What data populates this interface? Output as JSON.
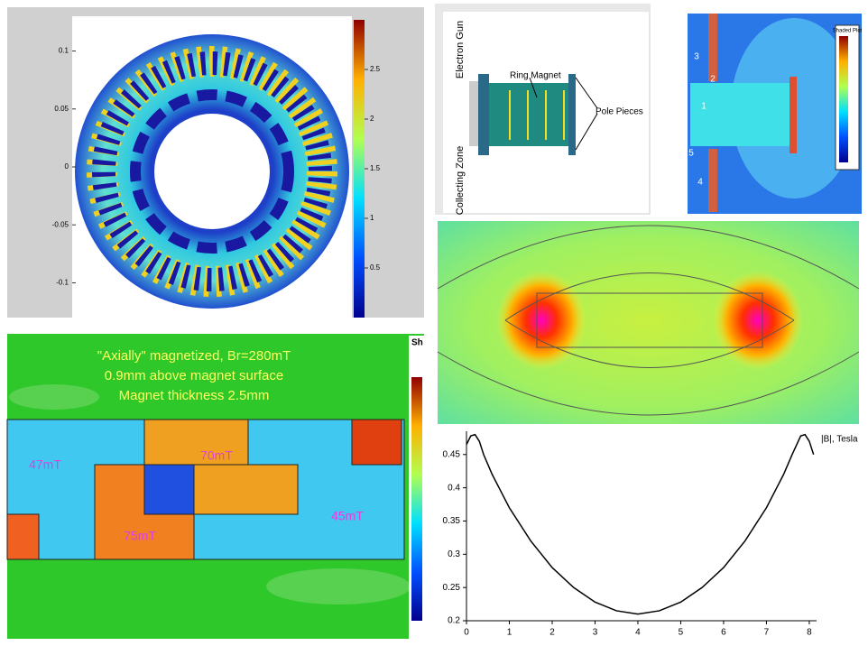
{
  "chart_data": {
    "type": "line",
    "y_label": "|B|, Tesla",
    "x": [
      0,
      0.1,
      0.2,
      0.3,
      0.4,
      0.6,
      0.8,
      1,
      1.5,
      2,
      2.5,
      3,
      3.5,
      4,
      4.5,
      5,
      5.5,
      6,
      6.5,
      7,
      7.2,
      7.4,
      7.6,
      7.8,
      7.9,
      8,
      8.1
    ],
    "values": [
      0.465,
      0.478,
      0.48,
      0.47,
      0.45,
      0.42,
      0.395,
      0.37,
      0.32,
      0.28,
      0.25,
      0.228,
      0.215,
      0.21,
      0.215,
      0.228,
      0.25,
      0.28,
      0.32,
      0.37,
      0.395,
      0.42,
      0.45,
      0.478,
      0.48,
      0.47,
      0.45
    ],
    "color": "#000000",
    "xlim": [
      0,
      8.17
    ],
    "ylim": [
      0.2,
      0.485
    ],
    "xticks": [
      0,
      1,
      2,
      3,
      4,
      5,
      6,
      7,
      8
    ],
    "yticks": [
      0.2,
      0.25,
      0.3,
      0.35,
      0.4,
      0.45
    ]
  },
  "ring_plot": {
    "yticks": [
      0.1,
      0.05,
      0,
      -0.05,
      -0.1
    ],
    "ylim": [
      -0.13,
      0.13
    ],
    "colorbar_ticks": [
      2.5,
      2,
      1.5,
      1,
      0.5
    ],
    "colorbar_lim": [
      0,
      3
    ]
  },
  "electron_gun_diagram": {
    "electron_gun": "Electron Gun",
    "ring_magnet": "Ring Magnet",
    "pole_pieces": "Pole Pieces",
    "collecting_zone": "Collecting Zone"
  },
  "shaded_plot": {
    "title": "Shaded Plot",
    "markers": [
      "1",
      "2",
      "3",
      "4",
      "5"
    ]
  },
  "magnet_map": {
    "annotations": [
      "\"Axially\" magnetized, Br=280mT",
      "0.9mm above magnet surface",
      "Magnet thickness 2.5mm"
    ],
    "field_labels": [
      "47mT",
      "70mT",
      "75mT",
      "45mT"
    ],
    "legend_title": "Sh"
  }
}
